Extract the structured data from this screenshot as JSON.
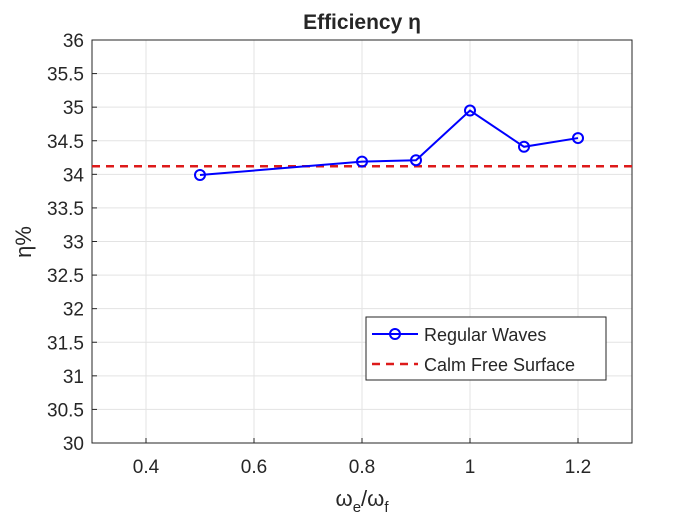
{
  "chart_data": {
    "type": "line",
    "title": "Efficiency η",
    "xlabel_main": "ω",
    "xlabel_sub1": "e",
    "xlabel_sep": "/ω",
    "xlabel_sub2": "f",
    "ylabel": "η%",
    "xlim": [
      0.3,
      1.3
    ],
    "ylim": [
      30,
      36
    ],
    "xticks": [
      0.4,
      0.6,
      0.8,
      1.0,
      1.2
    ],
    "xtick_labels": [
      "0.4",
      "0.6",
      "0.8",
      "1",
      "1.2"
    ],
    "yticks": [
      30,
      30.5,
      31,
      31.5,
      32,
      32.5,
      33,
      33.5,
      34,
      34.5,
      35,
      35.5,
      36
    ],
    "ytick_labels": [
      "30",
      "30.5",
      "31",
      "31.5",
      "32",
      "32.5",
      "33",
      "33.5",
      "34",
      "34.5",
      "35",
      "35.5",
      "36"
    ],
    "grid": true,
    "legend_position": "lower-right",
    "series": [
      {
        "name": "Regular Waves",
        "style": "solid-circle-markers",
        "color": "#0000ff",
        "x": [
          0.5,
          0.8,
          0.9,
          1.0,
          1.1,
          1.2
        ],
        "y": [
          33.99,
          34.19,
          34.21,
          34.95,
          34.41,
          34.54
        ]
      },
      {
        "name": "Calm Free Surface",
        "style": "dashed",
        "color": "#dd1a1a",
        "x": [
          0.3,
          1.3
        ],
        "y": [
          34.12,
          34.12
        ]
      }
    ]
  }
}
